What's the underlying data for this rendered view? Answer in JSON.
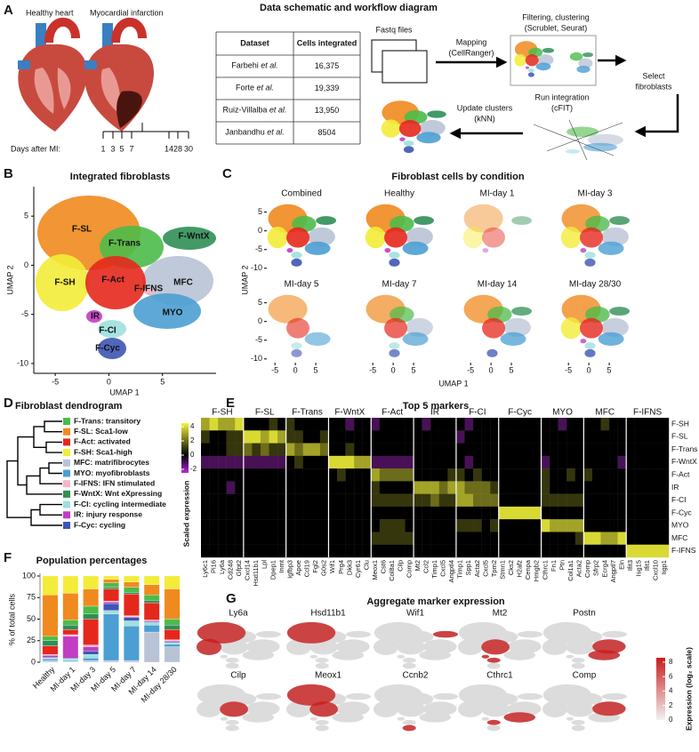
{
  "figure": {
    "panels": {
      "a": "A",
      "b": "B",
      "c": "C",
      "d": "D",
      "e": "E",
      "f": "F",
      "g": "G"
    },
    "schematic": {
      "title": "Data schematic and workflow diagram",
      "hearts": [
        "Healthy heart",
        "Myocardial infarction"
      ],
      "days_label": "Days after MI:",
      "days": [
        1,
        3,
        5,
        7,
        14,
        28,
        30
      ],
      "table": {
        "header": [
          "Dataset",
          "Cells integrated"
        ],
        "rows": [
          {
            "author": "Farbehi",
            "suffix": "et al.",
            "cells": "16,375"
          },
          {
            "author": "Forte",
            "suffix": "et al.",
            "cells": "19,339"
          },
          {
            "author": "Ruiz-Villalba",
            "suffix": "et al.",
            "cells": "13,950"
          },
          {
            "author": "Janbandhu",
            "suffix": "et al.",
            "cells": "8504"
          }
        ]
      },
      "workflow": {
        "fastq": "Fastq files",
        "mapping": [
          "Mapping",
          "(CellRanger)"
        ],
        "filtering": [
          "Filtering, clustering",
          "(Scrublet, Seurat)"
        ],
        "select": [
          "Select",
          "fibroblasts"
        ],
        "integration": [
          "Run integration",
          "(cFIT)"
        ],
        "update": [
          "Update clusters",
          "(kNN)"
        ]
      }
    },
    "integrated": {
      "title": "Integrated fibroblasts",
      "xlabel": "UMAP 1",
      "ylabel": "UMAP 2",
      "xlim": [
        -7,
        10
      ],
      "ylim": [
        -11,
        8
      ],
      "xticks": [
        -5,
        0,
        5
      ],
      "yticks": [
        -10,
        -5,
        0,
        5
      ],
      "clusters": [
        "F-SL",
        "F-Trans",
        "F-WntX",
        "F-SH",
        "F-Act",
        "F-IFNS",
        "MFC",
        "IR",
        "MYO",
        "F-CI",
        "F-Cyc"
      ]
    },
    "condition": {
      "title": "Fibroblast cells by condition",
      "panels": [
        "Combined",
        "Healthy",
        "MI-day 1",
        "MI-day 3",
        "MI-day 5",
        "MI-day 7",
        "MI-day 14",
        "MI-day 28/30"
      ],
      "xlabel": "UMAP 1",
      "ylabel": "UMAP 2",
      "xlim": [
        -7,
        10
      ],
      "ylim": [
        -11,
        8
      ],
      "xticks": [
        -5,
        0,
        5
      ],
      "yticks": [
        -10,
        -5,
        0,
        5
      ]
    },
    "dendrogram": {
      "title": "Fibroblast dendrogram",
      "leaves": [
        {
          "label": "F-Trans: transitory",
          "color": "#4cbb4a"
        },
        {
          "label": "F-SL: Sca1-low",
          "color": "#f08a1f"
        },
        {
          "label": "F-Act: activated",
          "color": "#e5281c"
        },
        {
          "label": "F-SH: Sca1-high",
          "color": "#f3ec38"
        },
        {
          "label": "MFC: matrifibrocytes",
          "color": "#b9c3d6"
        },
        {
          "label": "MYO: myofibroblasts",
          "color": "#4b9fd2"
        },
        {
          "label": "F-IFNS: IFN stimulated",
          "color": "#f4b5c8"
        },
        {
          "label": "F-WntX: Wnt eXpressing",
          "color": "#2f8f55"
        },
        {
          "label": "F-CI: cycling intermediate",
          "color": "#9fe0de"
        },
        {
          "label": "IR: injury response",
          "color": "#c23cc4"
        },
        {
          "label": "F-Cyc: cycling",
          "color": "#3d55b4"
        }
      ]
    },
    "markers": {
      "title": "Top 5 markers",
      "groups": [
        "F-SH",
        "F-SL",
        "F-Trans",
        "F-WntX",
        "F-Act",
        "IR",
        "F-CI",
        "F-Cyc",
        "MYO",
        "MFC",
        "F-IFNS"
      ],
      "genes": [
        [
          "Ly6c1",
          "Pi16",
          "Ly6a",
          "Cd248",
          "Gfpt2"
        ],
        [
          "Cxcl14",
          "Hsd11b1",
          "Lpl",
          "Dpep1",
          "Inmt"
        ],
        [
          "Igfbp3",
          "Apoe",
          "Ccl19",
          "Fgl2",
          "G0s2"
        ],
        [
          "Wif1",
          "Prg4",
          "Dkk3",
          "Cyr61",
          "Clu"
        ],
        [
          "Meox1",
          "Cst6",
          "Col8a1",
          "Cilp",
          "Comp"
        ],
        [
          "Mt2",
          "Ccl2",
          "Timp1",
          "Cxcl5",
          "Angptl4"
        ],
        [
          "Timp1",
          "Spp1",
          "Acta2",
          "Cxcl5",
          "Tpm2"
        ],
        [
          "Stmn1",
          "Cks2",
          "H2afz",
          "Cenpa",
          "Hmgb2"
        ],
        [
          "Cthrc1",
          "Fn1",
          "Ptn",
          "Col1a1",
          "Acta2"
        ],
        [
          "Comp",
          "Sfrp2",
          "Ecrg4",
          "Angptl7",
          "Eln"
        ],
        [
          "Ifit3",
          "Isg15",
          "Ifit1",
          "Cxcl10",
          "Iigp1"
        ]
      ],
      "rows": [
        "F-SH",
        "F-SL",
        "F-Trans",
        "F-WntX",
        "F-Act",
        "IR",
        "F-CI",
        "F-Cyc",
        "MYO",
        "MFC",
        "F-IFNS"
      ],
      "values": [
        [
          3,
          4,
          3,
          3,
          4,
          0,
          0,
          0,
          1,
          0,
          1,
          0,
          0,
          0,
          0,
          0,
          0,
          -1,
          0,
          0,
          -1,
          0,
          0,
          0,
          0,
          0,
          -1,
          0,
          0,
          0,
          0,
          -1,
          0,
          0,
          0,
          0,
          0,
          0,
          0,
          0,
          0,
          0,
          -1,
          0,
          0,
          0,
          0,
          1,
          0,
          0,
          0,
          0,
          0,
          0,
          0
        ],
        [
          1,
          0,
          0,
          1,
          1,
          4,
          4,
          3,
          4,
          3,
          1,
          1,
          0,
          0,
          1,
          0,
          0,
          0,
          0,
          0,
          0,
          0,
          0,
          0,
          0,
          0,
          0,
          0,
          0,
          0,
          -1,
          0,
          0,
          0,
          0,
          0,
          0,
          0,
          0,
          0,
          0,
          0,
          0,
          0,
          0,
          0,
          0,
          0,
          0,
          0,
          0,
          0,
          0,
          0,
          0
        ],
        [
          0,
          0,
          0,
          1,
          1,
          2,
          1,
          2,
          1,
          1,
          3,
          2,
          3,
          3,
          2,
          0,
          0,
          1,
          0,
          0,
          0,
          0,
          0,
          0,
          0,
          0,
          0,
          0,
          0,
          0,
          0,
          0,
          0,
          0,
          0,
          0,
          0,
          0,
          0,
          0,
          0,
          0,
          0,
          0,
          0,
          0,
          0,
          0,
          0,
          0,
          0,
          0,
          0,
          0,
          0
        ],
        [
          -1,
          -1,
          -1,
          -1,
          -1,
          -1,
          -1,
          -1,
          -1,
          -1,
          0,
          1,
          0,
          0,
          0,
          4,
          4,
          4,
          3,
          3,
          -1,
          -1,
          -1,
          -1,
          -1,
          0,
          0,
          0,
          0,
          0,
          0,
          -1,
          0,
          0,
          0,
          0,
          0,
          0,
          0,
          0,
          -1,
          0,
          0,
          0,
          0,
          0,
          0,
          0,
          0,
          -1,
          0,
          0,
          0,
          0,
          0
        ],
        [
          0,
          0,
          0,
          0,
          0,
          0,
          0,
          0,
          0,
          0,
          0,
          0,
          0,
          0,
          0,
          0,
          1,
          0,
          0,
          0,
          3,
          2,
          2,
          2,
          2,
          0,
          0,
          0,
          0,
          1,
          1,
          0,
          1,
          0,
          0,
          0,
          0,
          0,
          0,
          0,
          1,
          0,
          0,
          1,
          0,
          1,
          0,
          0,
          0,
          0,
          0,
          0,
          0,
          0,
          0
        ],
        [
          0,
          0,
          0,
          -1,
          0,
          0,
          0,
          0,
          0,
          0,
          0,
          0,
          0,
          0,
          0,
          0,
          0,
          0,
          0,
          0,
          1,
          0,
          0,
          0,
          0,
          3,
          3,
          3,
          2,
          3,
          3,
          2,
          2,
          2,
          1,
          0,
          0,
          0,
          0,
          0,
          1,
          0,
          0,
          0,
          0,
          0,
          0,
          0,
          0,
          0,
          0,
          0,
          0,
          0,
          0
        ],
        [
          0,
          0,
          0,
          0,
          0,
          0,
          0,
          0,
          0,
          0,
          0,
          0,
          0,
          0,
          0,
          0,
          0,
          0,
          0,
          0,
          1,
          1,
          1,
          1,
          1,
          1,
          1,
          2,
          1,
          1,
          3,
          3,
          2,
          2,
          2,
          0,
          0,
          0,
          0,
          0,
          1,
          1,
          1,
          1,
          1,
          0,
          0,
          0,
          0,
          0,
          0,
          0,
          0,
          0,
          0
        ],
        [
          0,
          0,
          0,
          0,
          0,
          0,
          0,
          0,
          0,
          0,
          0,
          0,
          0,
          0,
          0,
          0,
          0,
          0,
          0,
          0,
          0,
          0,
          0,
          0,
          0,
          0,
          0,
          0,
          0,
          0,
          0,
          0,
          0,
          0,
          0,
          4,
          4,
          4,
          4,
          4,
          0,
          0,
          0,
          0,
          0,
          0,
          0,
          0,
          0,
          0,
          0,
          0,
          0,
          0,
          0
        ],
        [
          0,
          0,
          0,
          0,
          0,
          0,
          0,
          0,
          0,
          0,
          0,
          0,
          0,
          0,
          0,
          0,
          0,
          0,
          0,
          0,
          0,
          1,
          1,
          1,
          0,
          0,
          0,
          0,
          0,
          0,
          1,
          1,
          1,
          0,
          1,
          0,
          0,
          0,
          0,
          0,
          4,
          3,
          3,
          3,
          3,
          0,
          0,
          0,
          0,
          0,
          0,
          0,
          0,
          0,
          0
        ],
        [
          0,
          0,
          0,
          0,
          0,
          0,
          0,
          0,
          0,
          0,
          0,
          0,
          0,
          0,
          0,
          0,
          0,
          0,
          0,
          0,
          1,
          1,
          1,
          1,
          1,
          0,
          0,
          0,
          0,
          0,
          0,
          0,
          0,
          0,
          0,
          0,
          0,
          0,
          0,
          0,
          0,
          0,
          0,
          0,
          1,
          4,
          4,
          3,
          3,
          4,
          0,
          0,
          0,
          0,
          0
        ],
        [
          0,
          0,
          0,
          0,
          0,
          0,
          0,
          0,
          0,
          0,
          0,
          0,
          0,
          0,
          0,
          0,
          0,
          0,
          0,
          0,
          0,
          0,
          0,
          0,
          0,
          0,
          0,
          0,
          0,
          0,
          0,
          0,
          0,
          0,
          0,
          0,
          0,
          0,
          0,
          0,
          0,
          0,
          0,
          0,
          0,
          0,
          0,
          0,
          0,
          0,
          4,
          4,
          4,
          4,
          4
        ]
      ],
      "scale_title": "Scaled expression",
      "scale_ticks": [
        4,
        2,
        0,
        -2
      ],
      "scale_lim": [
        -2.5,
        4.5
      ],
      "scale_colors": [
        "#b32bd6",
        "#000000",
        "#f4f43a"
      ]
    },
    "aggregate": {
      "title": "Aggregate marker expression",
      "genes": [
        "Ly6a",
        "Hsd11b1",
        "Wif1",
        "Mt2",
        "Postn",
        "Cilp",
        "Meox1",
        "Ccnb2",
        "Cthrc1",
        "Comp"
      ],
      "scale_title": "Expression (log₂ scale)",
      "scale_ticks": [
        0,
        2,
        4,
        6,
        8
      ],
      "scale_lim": [
        0,
        8.6
      ],
      "scale_colors": [
        "#f2f2f2",
        "#c81d1d"
      ]
    }
  },
  "chart_data": {
    "type": "bar",
    "stacked": true,
    "title": "Population percentages",
    "ylabel": "% of total cells",
    "categories": [
      "Healthy",
      "MI-day 1",
      "MI-day 3",
      "MI-day 5",
      "MI-day 7",
      "MI-day 14",
      "MI-day 28/30"
    ],
    "ylim": [
      0,
      100
    ],
    "yticks": [
      0,
      25,
      50,
      75,
      100
    ],
    "series": [
      {
        "color": "#b9c3d6",
        "values": [
          2,
          1,
          2,
          2,
          2,
          35,
          18
        ]
      },
      {
        "color": "#4b9fd2",
        "values": [
          2,
          1,
          3,
          54,
          40,
          8,
          3
        ]
      },
      {
        "color": "#9fe0de",
        "values": [
          1,
          2,
          4,
          4,
          6,
          3,
          2
        ]
      },
      {
        "color": "#3d55b4",
        "values": [
          1,
          1,
          4,
          8,
          4,
          1,
          1
        ]
      },
      {
        "color": "#c23cc4",
        "values": [
          2,
          25,
          5,
          2,
          1,
          1,
          1
        ]
      },
      {
        "color": "#f4b5c8",
        "values": [
          1,
          2,
          2,
          1,
          1,
          1,
          1
        ]
      },
      {
        "color": "#e5281c",
        "values": [
          10,
          6,
          30,
          14,
          25,
          20,
          12
        ]
      },
      {
        "color": "#2f8f55",
        "values": [
          6,
          5,
          6,
          2,
          2,
          3,
          5
        ]
      },
      {
        "color": "#4cbb4a",
        "values": [
          5,
          6,
          9,
          5,
          6,
          6,
          7
        ]
      },
      {
        "color": "#f08a1f",
        "values": [
          48,
          31,
          20,
          4,
          6,
          12,
          35
        ]
      },
      {
        "color": "#f3ec38",
        "values": [
          22,
          20,
          15,
          4,
          7,
          10,
          15
        ]
      }
    ]
  }
}
